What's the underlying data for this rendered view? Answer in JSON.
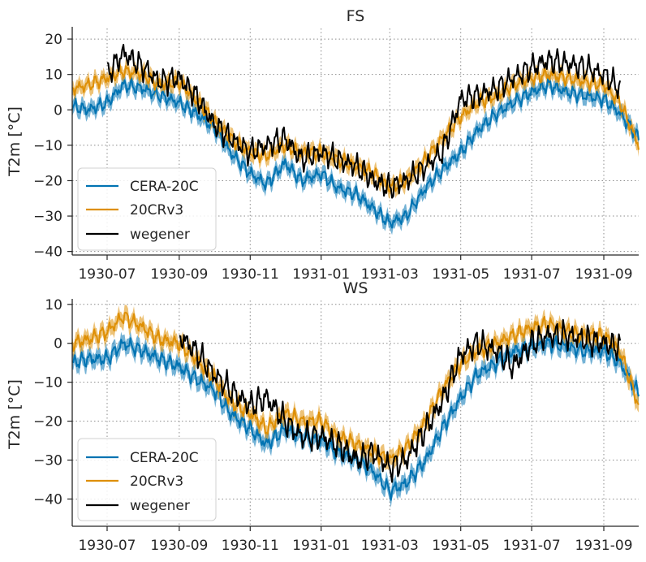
{
  "figure": {
    "background": "#ffffff"
  },
  "colors": {
    "cera": "#0173b2",
    "twcr": "#de8f05",
    "wegener": "#000000",
    "grid": "#8c8c8c",
    "axis": "#262626"
  },
  "legend": {
    "placement": "lower-left",
    "entries": [
      "CERA-20C",
      "20CRv3",
      "wegener"
    ]
  },
  "chart_data": [
    {
      "type": "line",
      "title": "FS",
      "xlabel": "",
      "ylabel": "T2m [°C]",
      "xlim": [
        "1930-06-01",
        "1931-10-01"
      ],
      "ylim": [
        -41,
        23
      ],
      "grid": true,
      "legend_placement": "lower-left",
      "x_ticks": [
        "1930-07",
        "1930-09",
        "1930-11",
        "1931-01",
        "1931-03",
        "1931-05",
        "1931-07",
        "1931-09"
      ],
      "y_ticks": [
        -40,
        -30,
        -20,
        -10,
        0,
        10,
        20
      ],
      "y_tick_labels": [
        "−40",
        "−30",
        "−20",
        "−10",
        "0",
        "10",
        "20"
      ],
      "series": [
        {
          "name": "CERA-20C",
          "color": "#0173b2",
          "band": "±2 °C",
          "x": [
            "1930-06-01",
            "1930-06-15",
            "1930-07-01",
            "1930-07-15",
            "1930-08-01",
            "1930-08-15",
            "1930-09-01",
            "1930-09-15",
            "1930-10-01",
            "1930-10-15",
            "1930-11-01",
            "1930-11-15",
            "1930-12-01",
            "1930-12-15",
            "1931-01-01",
            "1931-01-15",
            "1931-02-01",
            "1931-02-15",
            "1931-03-01",
            "1931-03-15",
            "1931-04-01",
            "1931-04-15",
            "1931-05-01",
            "1931-05-15",
            "1931-06-01",
            "1931-06-15",
            "1931-07-01",
            "1931-07-15",
            "1931-08-01",
            "1931-08-15",
            "1931-09-01",
            "1931-09-15",
            "1931-10-01"
          ],
          "values": [
            1,
            0,
            2,
            7,
            6,
            4,
            2,
            -1,
            -5,
            -12,
            -18,
            -21,
            -15,
            -20,
            -18,
            -22,
            -24,
            -28,
            -32,
            -30,
            -22,
            -17,
            -12,
            -6,
            -1,
            2,
            5,
            7,
            5,
            4,
            3,
            -1,
            -8
          ]
        },
        {
          "name": "20CRv3",
          "color": "#de8f05",
          "band": "±2 °C",
          "x": [
            "1930-06-01",
            "1930-06-15",
            "1930-07-01",
            "1930-07-15",
            "1930-08-01",
            "1930-08-15",
            "1930-09-01",
            "1930-09-15",
            "1930-10-01",
            "1930-10-15",
            "1930-11-01",
            "1930-11-15",
            "1930-12-01",
            "1930-12-15",
            "1931-01-01",
            "1931-01-15",
            "1931-02-01",
            "1931-02-15",
            "1931-03-01",
            "1931-03-15",
            "1931-04-01",
            "1931-04-15",
            "1931-05-01",
            "1931-05-15",
            "1931-06-01",
            "1931-06-15",
            "1931-07-01",
            "1931-07-15",
            "1931-08-01",
            "1931-08-15",
            "1931-09-01",
            "1931-09-15",
            "1931-10-01"
          ],
          "values": [
            6,
            7,
            9,
            11,
            10,
            7,
            8,
            3,
            -3,
            -8,
            -12,
            -13,
            -10,
            -12,
            -12,
            -14,
            -16,
            -18,
            -22,
            -20,
            -14,
            -8,
            -2,
            2,
            4,
            7,
            9,
            10,
            9,
            8,
            7,
            2,
            -10
          ]
        },
        {
          "name": "wegener",
          "color": "#000000",
          "x": [
            "1930-07-01",
            "1930-07-15",
            "1930-08-01",
            "1930-08-15",
            "1930-09-01",
            "1930-09-15",
            "1930-10-01",
            "1930-10-15",
            "1930-11-01",
            "1930-11-15",
            "1930-12-01",
            "1930-12-15",
            "1931-01-01",
            "1931-01-15",
            "1931-02-01",
            "1931-02-15",
            "1931-03-01",
            "1931-03-15",
            "1931-04-01",
            "1931-04-15",
            "1931-05-01",
            "1931-05-15",
            "1931-06-01",
            "1931-06-15",
            "1931-07-01",
            "1931-07-15",
            "1931-08-01",
            "1931-08-15",
            "1931-09-01",
            "1931-09-15"
          ],
          "values": [
            10,
            16,
            12,
            8,
            9,
            4,
            -4,
            -8,
            -12,
            -10,
            -8,
            -14,
            -12,
            -14,
            -16,
            -20,
            -22,
            -20,
            -16,
            -12,
            3,
            4,
            6,
            9,
            12,
            14,
            13,
            12,
            10,
            6
          ]
        }
      ]
    },
    {
      "type": "line",
      "title": "WS",
      "xlabel": "",
      "ylabel": "T2m [°C]",
      "xlim": [
        "1930-06-01",
        "1931-10-01"
      ],
      "ylim": [
        -47,
        11
      ],
      "grid": true,
      "legend_placement": "lower-left",
      "x_ticks": [
        "1930-07",
        "1930-09",
        "1930-11",
        "1931-01",
        "1931-03",
        "1931-05",
        "1931-07",
        "1931-09"
      ],
      "y_ticks": [
        -40,
        -30,
        -20,
        -10,
        0,
        10
      ],
      "y_tick_labels": [
        "−40",
        "−30",
        "−20",
        "−10",
        "0",
        "10"
      ],
      "series": [
        {
          "name": "CERA-20C",
          "color": "#0173b2",
          "band": "±2 °C",
          "x": [
            "1930-06-01",
            "1930-06-15",
            "1930-07-01",
            "1930-07-15",
            "1930-08-01",
            "1930-08-15",
            "1930-09-01",
            "1930-09-15",
            "1930-10-01",
            "1930-10-15",
            "1930-11-01",
            "1930-11-15",
            "1930-12-01",
            "1930-12-15",
            "1931-01-01",
            "1931-01-15",
            "1931-02-01",
            "1931-02-15",
            "1931-03-01",
            "1931-03-15",
            "1931-04-01",
            "1931-04-15",
            "1931-05-01",
            "1931-05-15",
            "1931-06-01",
            "1931-06-15",
            "1931-07-01",
            "1931-07-15",
            "1931-08-01",
            "1931-08-15",
            "1931-09-01",
            "1931-09-15",
            "1931-10-01"
          ],
          "values": [
            -5,
            -4,
            -4,
            0,
            -2,
            -4,
            -6,
            -9,
            -12,
            -18,
            -22,
            -26,
            -22,
            -24,
            -25,
            -28,
            -30,
            -33,
            -38,
            -36,
            -30,
            -22,
            -14,
            -8,
            -5,
            -2,
            -1,
            0,
            -1,
            -2,
            -2,
            -5,
            -13
          ]
        },
        {
          "name": "20CRv3",
          "color": "#de8f05",
          "band": "±2 °C",
          "x": [
            "1930-06-01",
            "1930-06-15",
            "1930-07-01",
            "1930-07-15",
            "1930-08-01",
            "1930-08-15",
            "1930-09-01",
            "1930-09-15",
            "1930-10-01",
            "1930-10-15",
            "1930-11-01",
            "1930-11-15",
            "1930-12-01",
            "1930-12-15",
            "1931-01-01",
            "1931-01-15",
            "1931-02-01",
            "1931-02-15",
            "1931-03-01",
            "1931-03-15",
            "1931-04-01",
            "1931-04-15",
            "1931-05-01",
            "1931-05-15",
            "1931-06-01",
            "1931-06-15",
            "1931-07-01",
            "1931-07-15",
            "1931-08-01",
            "1931-08-15",
            "1931-09-01",
            "1931-09-15",
            "1931-10-01"
          ],
          "values": [
            0,
            1,
            3,
            7,
            4,
            1,
            0,
            -4,
            -9,
            -15,
            -18,
            -22,
            -18,
            -20,
            -20,
            -24,
            -26,
            -28,
            -30,
            -27,
            -20,
            -12,
            -5,
            -2,
            0,
            2,
            4,
            5,
            3,
            2,
            2,
            -2,
            -16
          ]
        },
        {
          "name": "wegener",
          "color": "#000000",
          "x": [
            "1930-09-01",
            "1930-09-15",
            "1930-10-01",
            "1930-10-15",
            "1930-11-01",
            "1930-11-15",
            "1930-12-01",
            "1930-12-15",
            "1931-01-01",
            "1931-01-15",
            "1931-02-01",
            "1931-02-15",
            "1931-03-01",
            "1931-03-15",
            "1931-04-01",
            "1931-04-15",
            "1931-05-01",
            "1931-05-15",
            "1931-06-01",
            "1931-06-15",
            "1931-07-01",
            "1931-07-15",
            "1931-08-01",
            "1931-08-15",
            "1931-09-01",
            "1931-09-15"
          ],
          "values": [
            2,
            -2,
            -8,
            -12,
            -16,
            -14,
            -20,
            -24,
            -24,
            -26,
            -30,
            -28,
            -32,
            -30,
            -22,
            -15,
            -3,
            0,
            -2,
            -6,
            0,
            2,
            2,
            1,
            0,
            -1
          ]
        }
      ]
    }
  ]
}
